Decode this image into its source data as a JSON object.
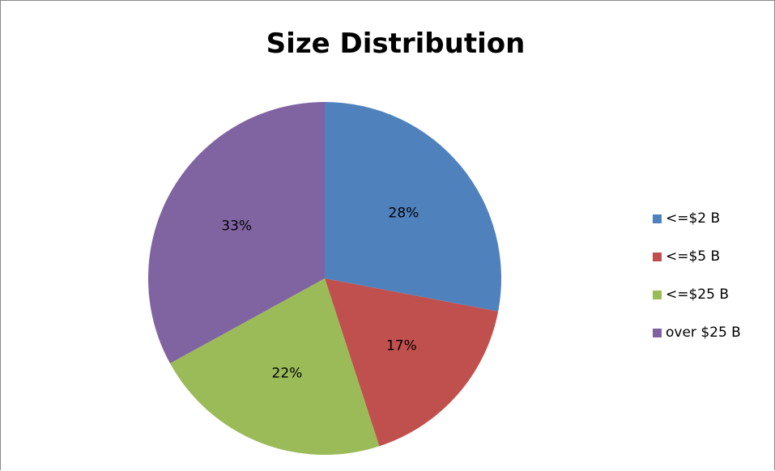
{
  "chart_data": {
    "type": "pie",
    "title": "Size Distribution",
    "categories": [
      "<=$2 B",
      "<=$5 B",
      "<=$25 B",
      "over $25 B"
    ],
    "values": [
      28,
      17,
      22,
      33
    ],
    "value_labels": [
      "28%",
      "17%",
      "22%",
      "33%"
    ],
    "colors": [
      "#4F81BD",
      "#C0504D",
      "#9BBB59",
      "#8064A2"
    ],
    "start_angle": "12 o'clock",
    "direction": "clockwise",
    "legend_position": "right"
  }
}
